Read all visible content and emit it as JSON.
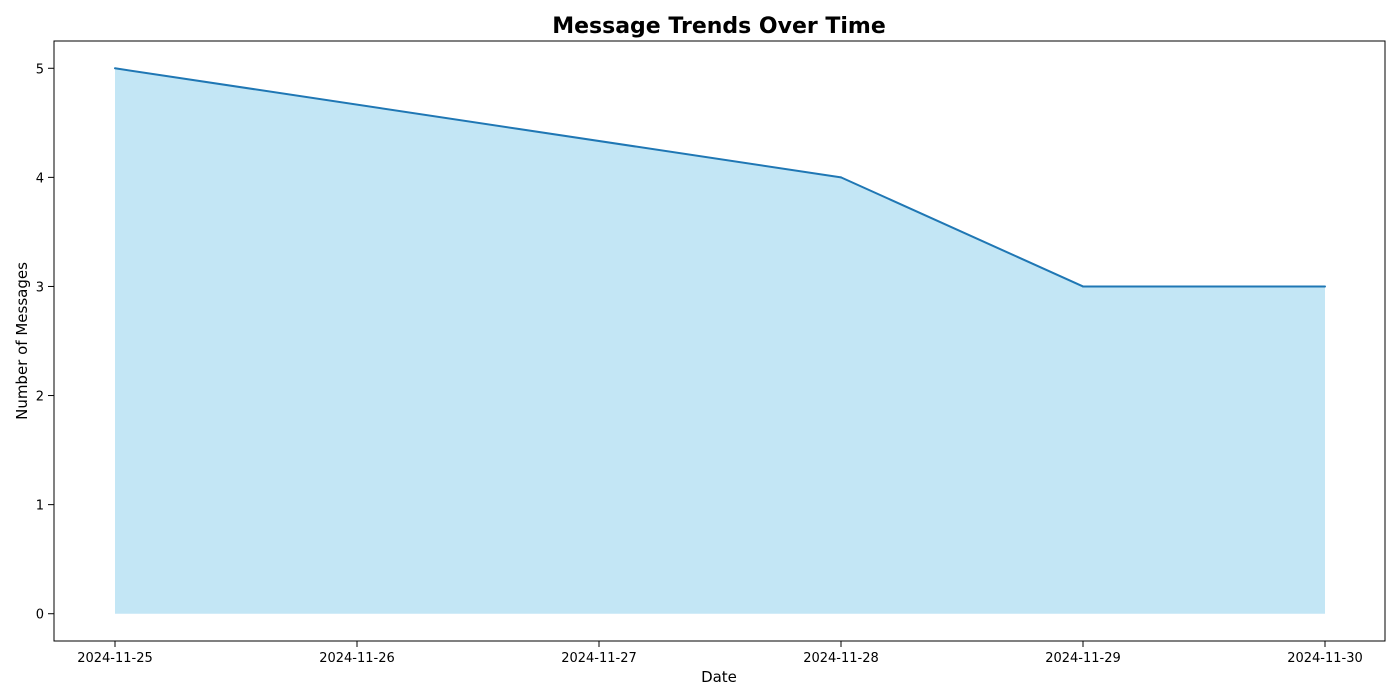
{
  "chart_data": {
    "type": "area",
    "title": "Message Trends Over Time",
    "xlabel": "Date",
    "ylabel": "Number of Messages",
    "x": [
      "2024-11-25",
      "2024-11-26",
      "2024-11-27",
      "2024-11-28",
      "2024-11-29",
      "2024-11-30"
    ],
    "values": [
      5,
      null,
      null,
      4,
      3,
      3
    ],
    "points": [
      {
        "date": "2024-11-25",
        "value": 5
      },
      {
        "date": "2024-11-28",
        "value": 4
      },
      {
        "date": "2024-11-29",
        "value": 3
      },
      {
        "date": "2024-11-30",
        "value": 3
      }
    ],
    "ylim": [
      -0.25,
      5.25
    ],
    "yticks": [
      0,
      1,
      2,
      3,
      4,
      5
    ],
    "grid": false,
    "legend": "none",
    "colors": {
      "line": "#1f77b4",
      "fill": "#87ceeb",
      "fill_opacity": 0.5
    }
  }
}
